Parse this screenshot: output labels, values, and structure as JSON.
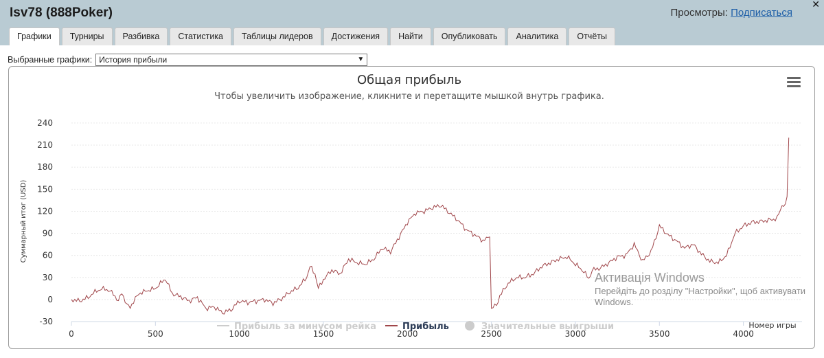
{
  "header": {
    "player_title": "Isv78 (888Poker)",
    "views_label": "Просмотры:",
    "subscribe_label": "Подписаться"
  },
  "tabs": [
    {
      "label": "Графики",
      "active": true
    },
    {
      "label": "Турниры"
    },
    {
      "label": "Разбивка"
    },
    {
      "label": "Статистика"
    },
    {
      "label": "Таблицы лидеров"
    },
    {
      "label": "Достижения"
    },
    {
      "label": "Найти"
    },
    {
      "label": "Опубликовать"
    },
    {
      "label": "Аналитика"
    },
    {
      "label": "Отчёты"
    }
  ],
  "selector": {
    "label": "Выбранные графики:",
    "value": "История прибыли"
  },
  "watermark": {
    "line1": "Активація Windows",
    "line2": "Перейдіть до розділу \"Настройки\", щоб активувати",
    "line3": "Windows."
  },
  "chart_data": {
    "type": "line",
    "title": "Общая прибыль",
    "subtitle": "Чтобы увеличить изображение, кликните и перетащите мышкой внутрь графика.",
    "xlabel": "Номер игры",
    "ylabel": "Суммарный итог (USD)",
    "xlim": [
      0,
      4300
    ],
    "ylim": [
      -30,
      240
    ],
    "xticks": [
      0,
      500,
      1000,
      1500,
      2000,
      2500,
      3000,
      3500,
      4000
    ],
    "yticks": [
      -30,
      0,
      30,
      60,
      90,
      120,
      150,
      180,
      210,
      240
    ],
    "grid": "horizontal",
    "legend_position": "bottom",
    "series": [
      {
        "name": "Прибыль за минусом рейка",
        "visible": false,
        "color": "#cccccc",
        "x": [],
        "y": []
      },
      {
        "name": "Прибыль",
        "visible": true,
        "color": "#a0464a",
        "x": [
          0,
          50,
          100,
          150,
          200,
          250,
          280,
          300,
          330,
          350,
          400,
          450,
          500,
          530,
          560,
          600,
          650,
          700,
          750,
          800,
          850,
          900,
          950,
          1000,
          1050,
          1100,
          1150,
          1200,
          1250,
          1300,
          1350,
          1400,
          1420,
          1450,
          1470,
          1500,
          1550,
          1600,
          1650,
          1700,
          1750,
          1800,
          1850,
          1900,
          1950,
          2000,
          2050,
          2100,
          2150,
          2200,
          2250,
          2300,
          2350,
          2400,
          2450,
          2490,
          2500,
          2510,
          2530,
          2550,
          2600,
          2650,
          2700,
          2750,
          2800,
          2850,
          2900,
          2950,
          3000,
          3050,
          3080,
          3100,
          3150,
          3200,
          3250,
          3300,
          3350,
          3400,
          3450,
          3480,
          3500,
          3550,
          3600,
          3650,
          3700,
          3750,
          3800,
          3850,
          3900,
          3950,
          4000,
          4050,
          4100,
          4150,
          4200,
          4230,
          4250,
          4260,
          4270
        ],
        "y": [
          0,
          -2,
          3,
          12,
          15,
          8,
          -3,
          10,
          -8,
          -10,
          8,
          12,
          15,
          22,
          28,
          8,
          4,
          -2,
          3,
          -12,
          -10,
          -18,
          -14,
          -2,
          -4,
          -2,
          0,
          -5,
          1,
          10,
          16,
          30,
          45,
          35,
          15,
          27,
          40,
          35,
          55,
          50,
          48,
          55,
          70,
          65,
          85,
          105,
          118,
          120,
          125,
          128,
          118,
          108,
          95,
          88,
          80,
          85,
          -12,
          -10,
          -8,
          5,
          22,
          30,
          30,
          35,
          45,
          50,
          55,
          58,
          48,
          38,
          28,
          40,
          43,
          50,
          58,
          60,
          75,
          52,
          65,
          85,
          100,
          88,
          80,
          70,
          75,
          62,
          52,
          50,
          60,
          90,
          100,
          105,
          106,
          108,
          110,
          128,
          130,
          140,
          220
        ]
      },
      {
        "name": "Значительные выигрыши",
        "visible": false,
        "color": "#cccccc",
        "x": [],
        "y": []
      }
    ]
  }
}
